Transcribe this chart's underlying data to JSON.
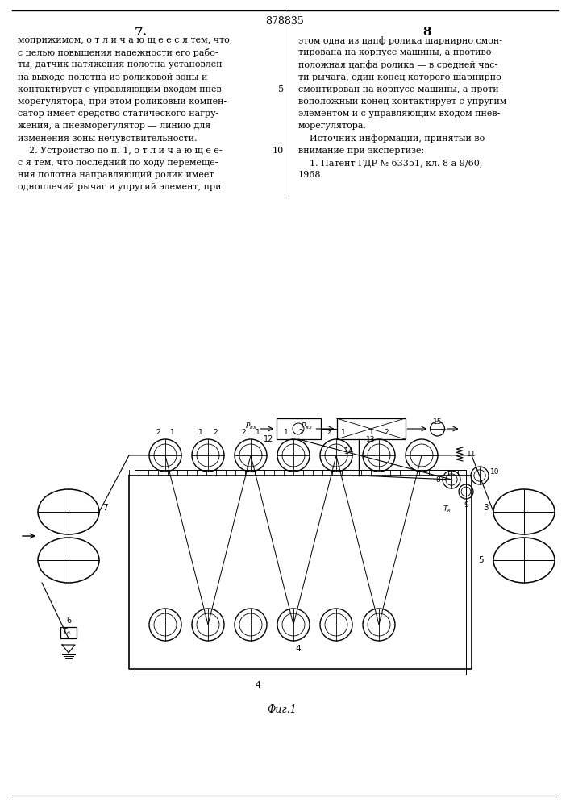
{
  "page_number_center": "878835",
  "left_col_number": "7.",
  "right_col_number": "8",
  "left_col_text_lines": [
    "моприжимом, о т л и ч а ю щ е е с я тем, что,",
    "с целью повышения надежности его рабо-",
    "ты, датчик натяжения полотна установлен",
    "на выходе полотна из роликовой зоны и",
    "контактирует с управляющим входом пнев-",
    "морегулятора, при этом роликовый компен-",
    "сатор имеет средство статического нагру-",
    "жения, а пневморегулятор — линию для",
    "изменения зоны нечувствительности.",
    "    2. Устройство по п. 1, о т л и ч а ю щ е е-",
    "с я тем, что последний по ходу перемеще-",
    "ния полотна направляющий ролик имеет",
    "одноплечий рычаг и упругий элемент, при"
  ],
  "right_col_text_lines": [
    "этом одна из цапф ролика шарнирно смон-",
    "тирована на корпусе машины, а противо-",
    "положная цапфа ролика — в средней час-",
    "ти рычага, один конец которого шарнирно",
    "смонтирован на корпусе машины, а проти-",
    "воположный конец контактирует с упругим",
    "элементом и с управляющим входом пнев-",
    "морегулятора.",
    "    Источник информации, принятый во",
    "внимание при экспертизе:",
    "    1. Патент ГДР № 63351, кл. 8 а 9/60,",
    "1968."
  ],
  "line_num_5_row": 4,
  "line_num_10_row": 9,
  "fig_caption": "Фиг.1",
  "bg_color": "#ffffff",
  "text_color": "#000000",
  "line_color": "#000000"
}
